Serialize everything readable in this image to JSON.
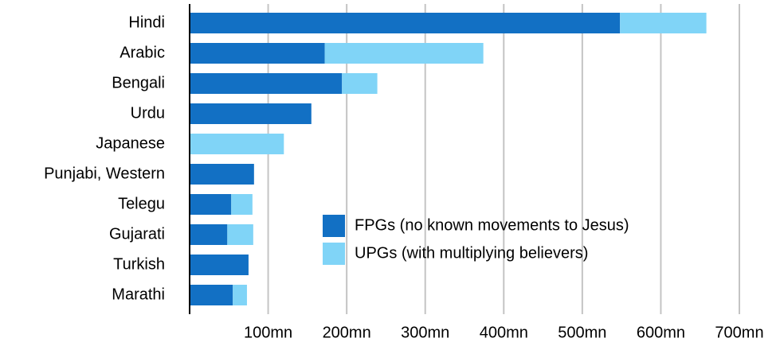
{
  "chart_data": {
    "type": "stacked-bar-horizontal",
    "categories": [
      "Hindi",
      "Arabic",
      "Bengali",
      "Urdu",
      "Japanese",
      "Punjabi, Western",
      "Telegu",
      "Gujarati",
      "Turkish",
      "Marathi"
    ],
    "series": [
      {
        "name": "FPGs (no known movements to Jesus)",
        "color": "#1270c4",
        "values": [
          548,
          172,
          194,
          155,
          0,
          82,
          53,
          48,
          75,
          55
        ]
      },
      {
        "name": "UPGs (with multiplying believers)",
        "color": "#80d4f7",
        "values": [
          110,
          202,
          45,
          0,
          120,
          0,
          27,
          33,
          0,
          18
        ]
      }
    ],
    "xlim": [
      0,
      700
    ],
    "xticks": [
      {
        "value": 100,
        "label": "100mn"
      },
      {
        "value": 200,
        "label": "200mn"
      },
      {
        "value": 300,
        "label": "300mn"
      },
      {
        "value": 400,
        "label": "400mn"
      },
      {
        "value": 500,
        "label": "500mn"
      },
      {
        "value": 600,
        "label": "600mn"
      },
      {
        "value": 700,
        "label": "700mn"
      }
    ],
    "grid": true,
    "legend": "lower-right"
  }
}
